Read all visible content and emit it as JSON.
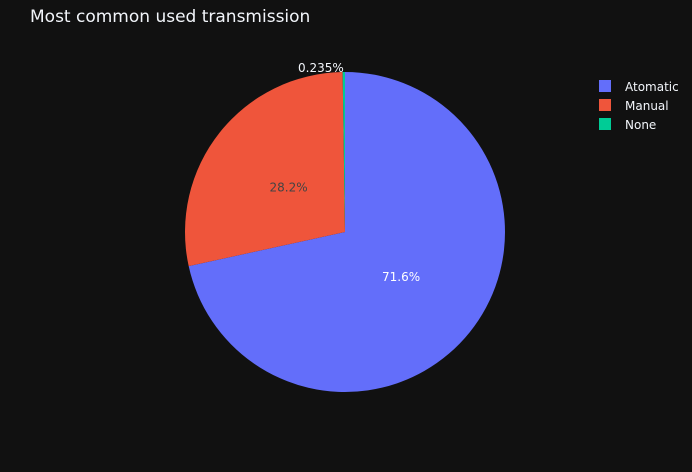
{
  "chart_data": {
    "type": "pie",
    "title": "Most common used transmission",
    "labels": [
      "Atomatic",
      "Manual",
      "None"
    ],
    "values": [
      71.6,
      28.2,
      0.235
    ],
    "value_labels": [
      "71.6%",
      "28.2%",
      "0.235%"
    ],
    "colors": [
      "#636efa",
      "#ef553b",
      "#00cc96"
    ],
    "label_colors": [
      "#ffffff",
      "#444444",
      "#f2f5fa"
    ],
    "start_angle_deg": 0,
    "direction": "clockwise",
    "legend": "top-right",
    "background": "#111111"
  }
}
